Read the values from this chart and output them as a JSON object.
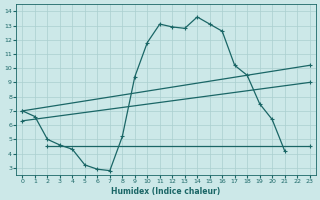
{
  "xlabel": "Humidex (Indice chaleur)",
  "bg_color": "#cce8e8",
  "line_color": "#1a6666",
  "grid_color": "#aacfcf",
  "xlim": [
    -0.5,
    23.5
  ],
  "ylim": [
    2.5,
    14.5
  ],
  "xticks": [
    0,
    1,
    2,
    3,
    4,
    5,
    6,
    7,
    8,
    9,
    10,
    11,
    12,
    13,
    14,
    15,
    16,
    17,
    18,
    19,
    20,
    21,
    22,
    23
  ],
  "yticks": [
    3,
    4,
    5,
    6,
    7,
    8,
    9,
    10,
    11,
    12,
    13,
    14
  ],
  "curve_main": {
    "x": [
      0,
      1,
      2,
      3,
      4,
      5,
      6,
      7,
      8,
      9,
      10,
      11,
      12,
      13,
      14,
      15,
      16,
      17,
      18,
      19,
      20,
      21
    ],
    "y": [
      7.0,
      6.6,
      5.0,
      4.6,
      4.3,
      3.2,
      2.9,
      2.8,
      5.2,
      9.4,
      11.8,
      13.1,
      12.9,
      12.8,
      13.6,
      13.1,
      12.6,
      10.2,
      9.5,
      7.5,
      6.4,
      4.2
    ]
  },
  "line_upper": {
    "x": [
      0,
      23
    ],
    "y": [
      7.0,
      10.2
    ]
  },
  "line_lower": {
    "x": [
      0,
      23
    ],
    "y": [
      6.3,
      9.0
    ]
  },
  "line_flat": {
    "x": [
      2,
      23
    ],
    "y": [
      4.5,
      4.5
    ]
  }
}
